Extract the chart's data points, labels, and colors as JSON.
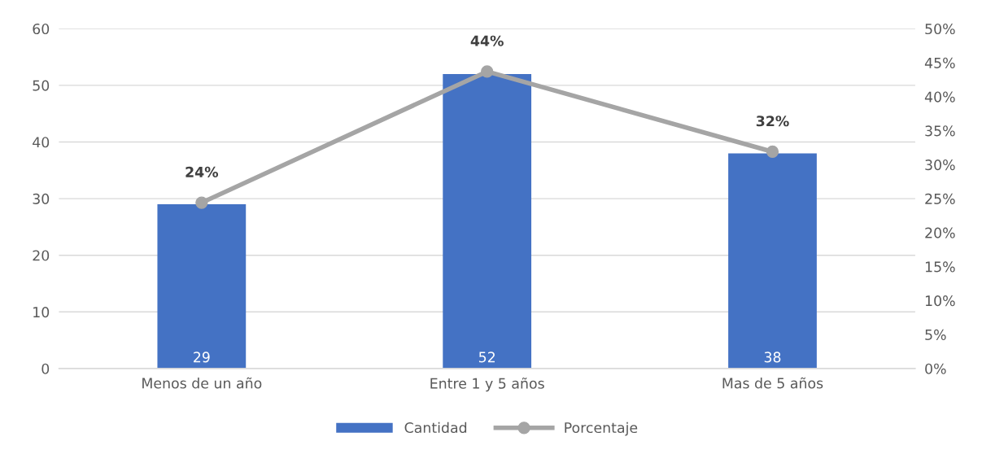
{
  "chart_data": {
    "type": "bar",
    "categories": [
      "Menos de un año",
      "Entre 1 y 5 años",
      "Mas de 5 años"
    ],
    "series": [
      {
        "name": "Cantidad",
        "color": "#4472c4",
        "values": [
          29,
          52,
          38
        ],
        "value_labels": [
          "29",
          "52",
          "38"
        ]
      },
      {
        "name": "Porcentaje",
        "type": "line",
        "axis": "y2",
        "color": "#a5a5a5",
        "values": [
          24.4,
          43.7,
          31.9
        ],
        "value_labels": [
          "24%",
          "44%",
          "32%"
        ],
        "marker": "circle"
      }
    ],
    "ylim": [
      0,
      60
    ],
    "yticks": [
      0,
      10,
      20,
      30,
      40,
      50,
      60
    ],
    "y2lim": [
      0,
      50
    ],
    "y2ticks": [
      {
        "value": 0,
        "label": "0%"
      },
      {
        "value": 5,
        "label": "5%"
      },
      {
        "value": 10,
        "label": "10%"
      },
      {
        "value": 15,
        "label": "15%"
      },
      {
        "value": 20,
        "label": "20%"
      },
      {
        "value": 25,
        "label": "25%"
      },
      {
        "value": 30,
        "label": "30%"
      },
      {
        "value": 35,
        "label": "35%"
      },
      {
        "value": 40,
        "label": "40%"
      },
      {
        "value": 45,
        "label": "45%"
      },
      {
        "value": 50,
        "label": "50%"
      }
    ],
    "grid": "y",
    "legend": "bottom"
  }
}
